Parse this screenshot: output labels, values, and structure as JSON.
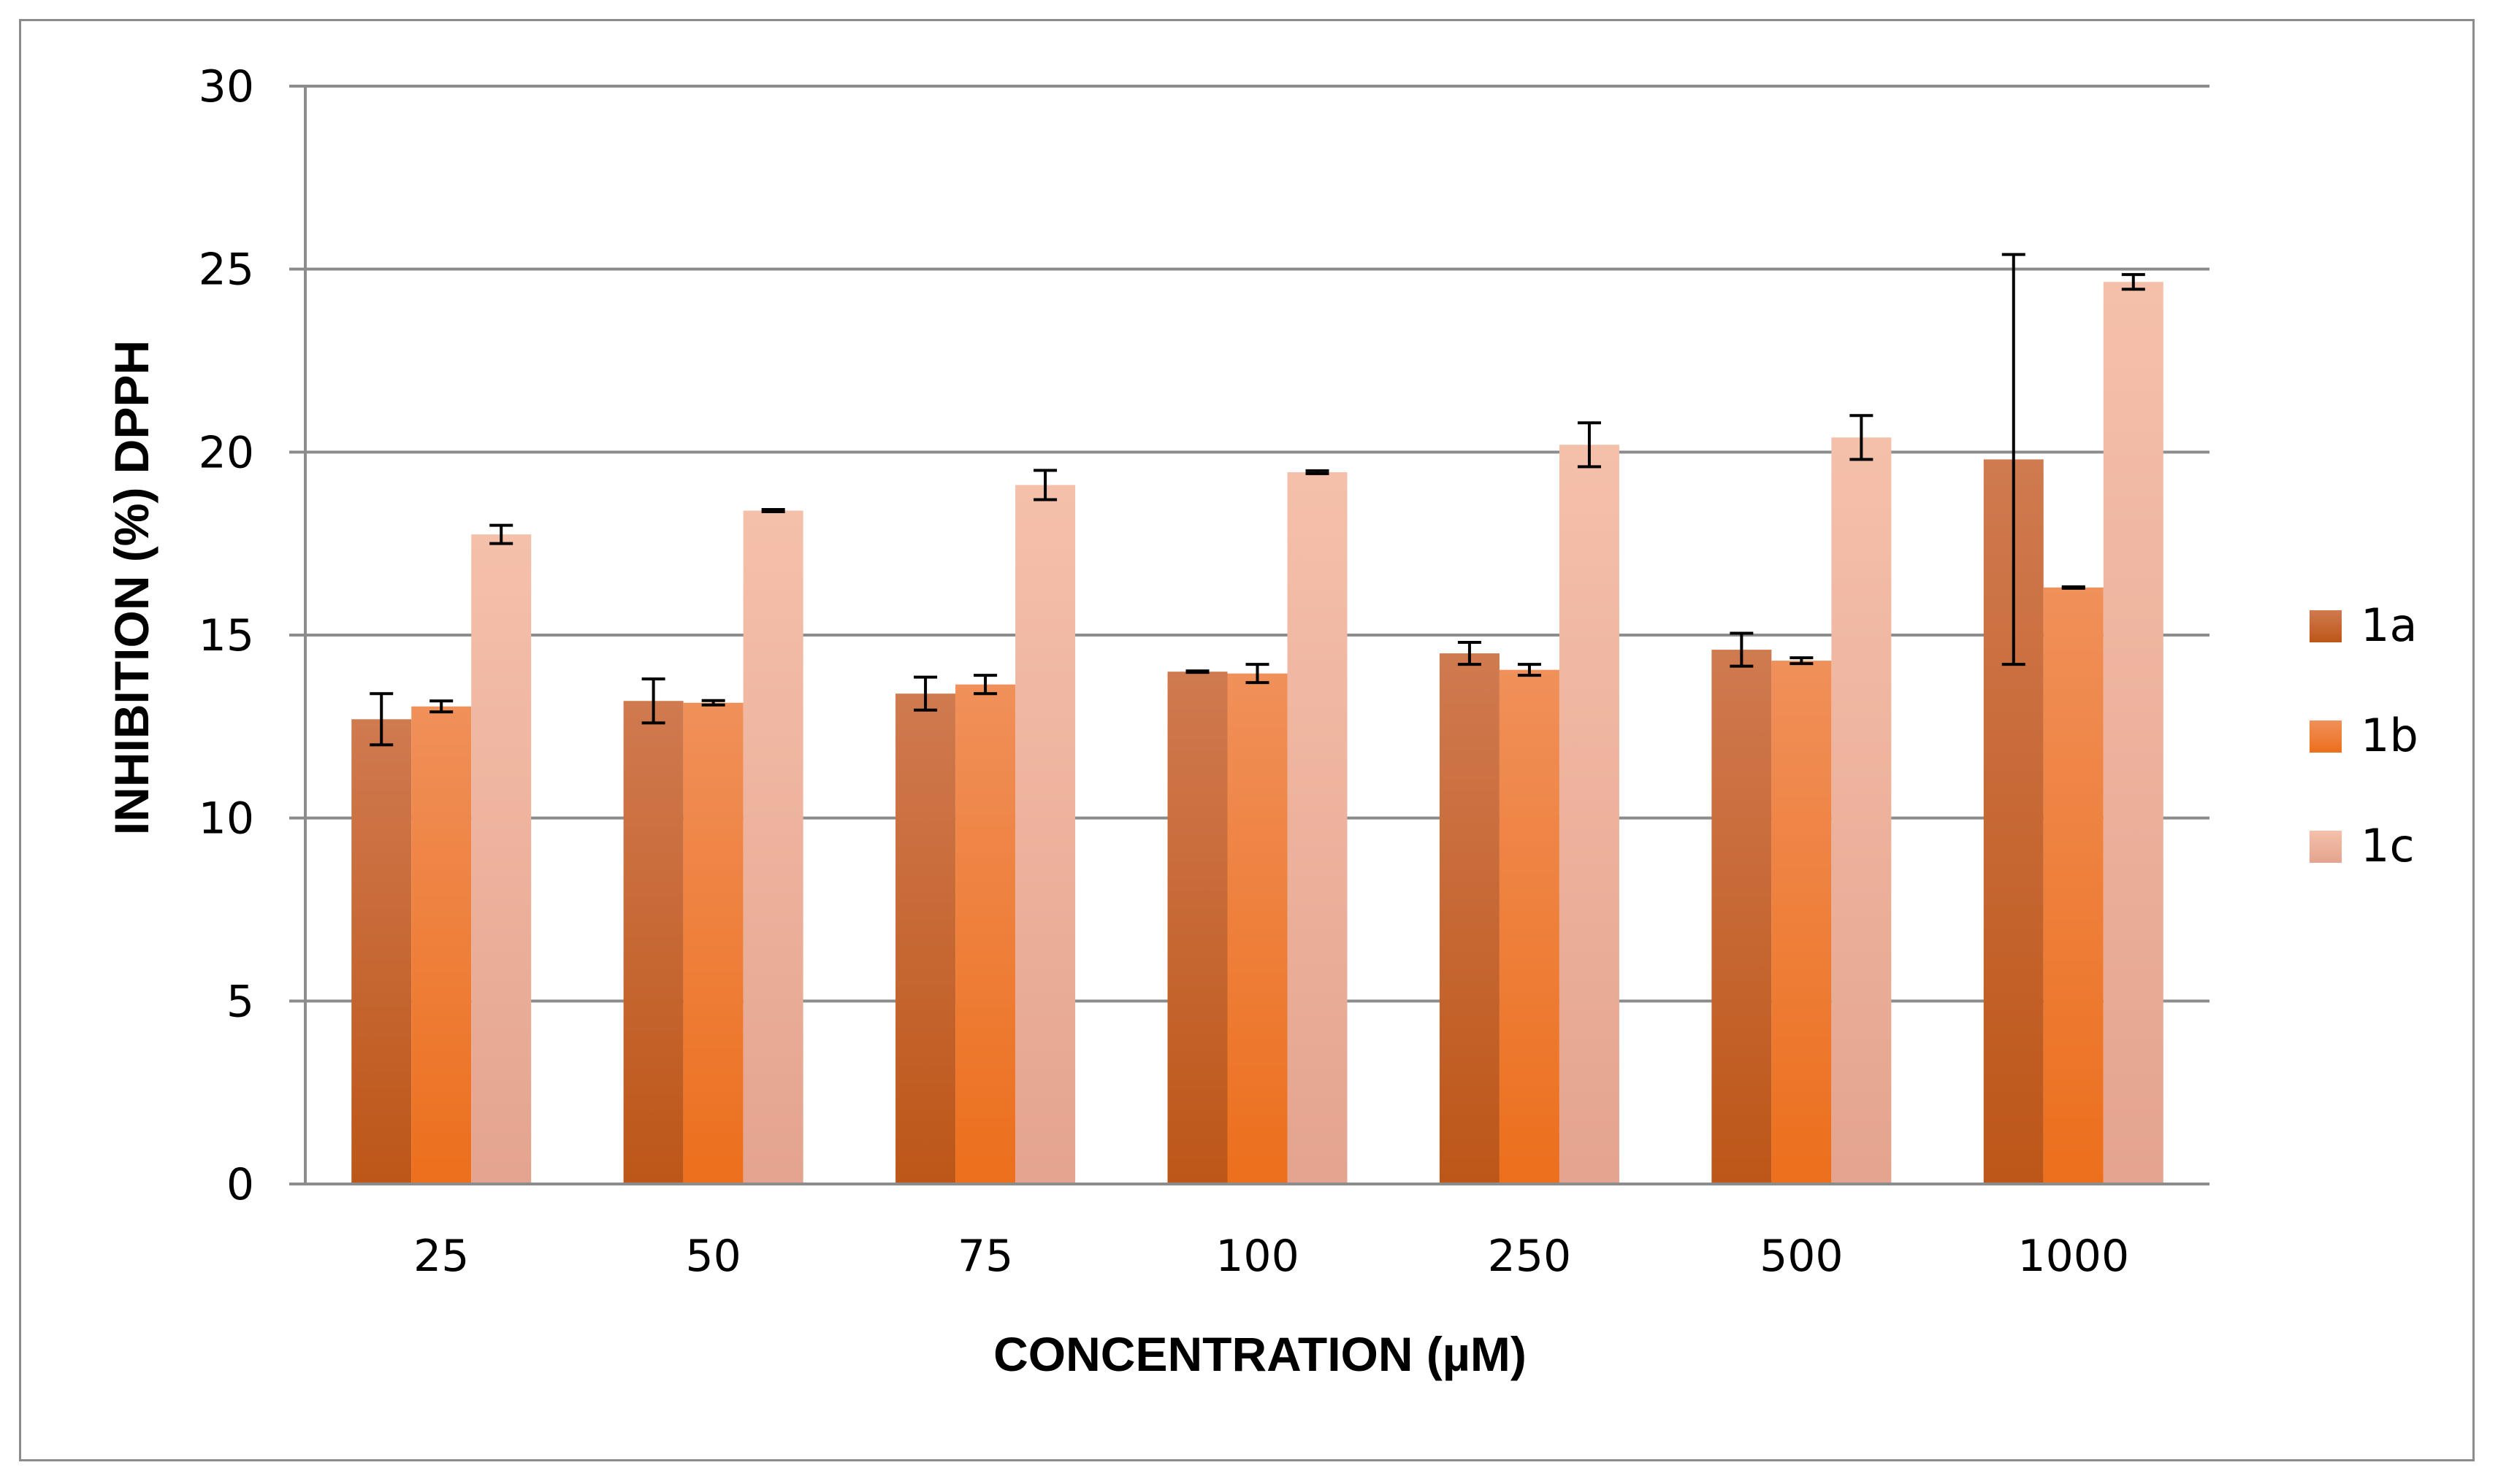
{
  "chart_data": {
    "type": "bar",
    "xlabel": "CONCENTRATION (µM)",
    "ylabel": "INHIBITION (%) DPPH",
    "categories": [
      "25",
      "50",
      "75",
      "100",
      "250",
      "500",
      "1000"
    ],
    "ylim": [
      0,
      30
    ],
    "yticks": [
      0,
      5,
      10,
      15,
      20,
      25,
      30
    ],
    "grid": true,
    "legend_position": "right",
    "series": [
      {
        "name": "1a",
        "color_top": "#d07a50",
        "color_bottom": "#bd5618",
        "values": [
          12.7,
          13.2,
          13.4,
          14.0,
          14.5,
          14.6,
          19.8
        ],
        "errors": [
          0.7,
          0.6,
          0.45,
          0.02,
          0.3,
          0.45,
          5.6
        ]
      },
      {
        "name": "1b",
        "color_top": "#f0905a",
        "color_bottom": "#ec6f1c",
        "values": [
          13.05,
          13.15,
          13.65,
          13.95,
          14.05,
          14.3,
          16.3
        ],
        "errors": [
          0.15,
          0.06,
          0.25,
          0.25,
          0.15,
          0.08,
          0.02
        ]
      },
      {
        "name": "1c",
        "color_top": "#f5c0aa",
        "color_bottom": "#e4a48f",
        "values": [
          17.75,
          18.4,
          19.1,
          19.45,
          20.2,
          20.4,
          24.65
        ],
        "errors": [
          0.25,
          0.03,
          0.4,
          0.04,
          0.6,
          0.6,
          0.2
        ]
      }
    ]
  }
}
